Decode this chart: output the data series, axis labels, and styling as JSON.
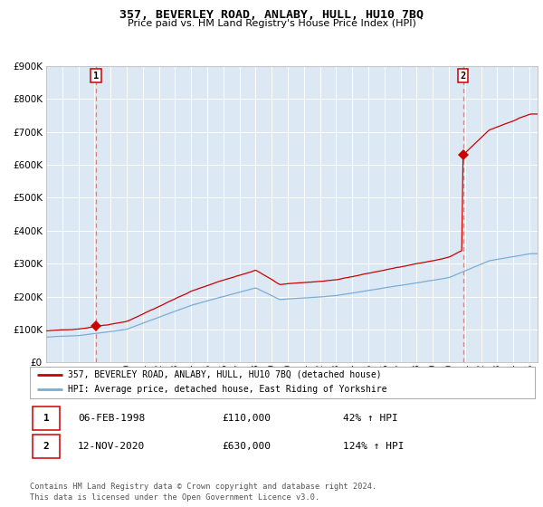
{
  "title": "357, BEVERLEY ROAD, ANLABY, HULL, HU10 7BQ",
  "subtitle": "Price paid vs. HM Land Registry's House Price Index (HPI)",
  "red_label": "357, BEVERLEY ROAD, ANLABY, HULL, HU10 7BQ (detached house)",
  "blue_label": "HPI: Average price, detached house, East Riding of Yorkshire",
  "transaction1_date": "06-FEB-1998",
  "transaction1_price": 110000,
  "transaction1_hpi": "42% ↑ HPI",
  "transaction2_date": "12-NOV-2020",
  "transaction2_price": 630000,
  "transaction2_hpi": "124% ↑ HPI",
  "footer_line1": "Contains HM Land Registry data © Crown copyright and database right 2024.",
  "footer_line2": "This data is licensed under the Open Government Licence v3.0.",
  "ylim": [
    0,
    900000
  ],
  "yticks": [
    0,
    100000,
    200000,
    300000,
    400000,
    500000,
    600000,
    700000,
    800000,
    900000
  ],
  "fig_bg_color": "#ffffff",
  "plot_bg_color": "#dce9f5",
  "red_color": "#cc0000",
  "blue_color": "#7aadd4",
  "grid_color": "#ffffff",
  "vline_color": "#cc8888",
  "transaction1_year": 1998.09,
  "transaction2_year": 2020.87,
  "xmin": 1995,
  "xmax": 2025.5
}
